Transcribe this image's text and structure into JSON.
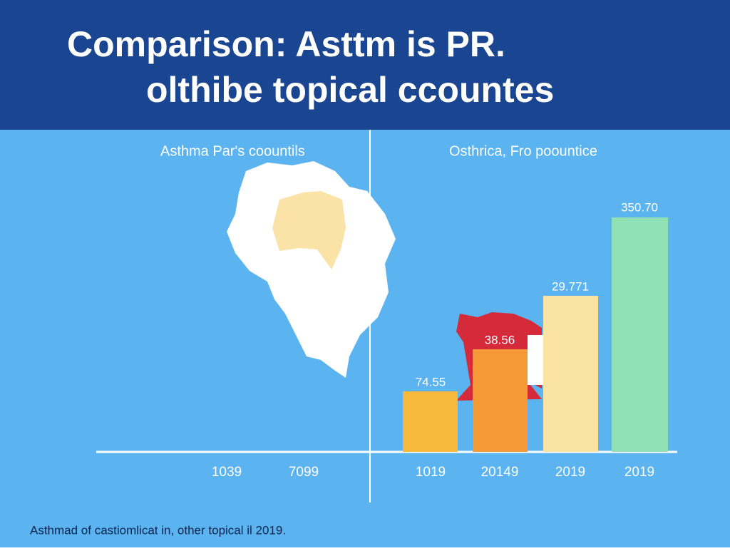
{
  "header": {
    "title_lines": [
      "Comparison: Asttm is PR.",
      "olthibe topical ccountes"
    ]
  },
  "left_panel": {
    "title": "Asthma Par's coountils",
    "x_labels": [
      "1039",
      "7099"
    ]
  },
  "right_panel": {
    "title": "Osthrica, Fro poountice",
    "bars": [
      {
        "label": "74.55",
        "category": "1019"
      },
      {
        "label": "38.56",
        "category": "20149"
      },
      {
        "label": "29.771",
        "category": "2019"
      },
      {
        "label": "350.70",
        "category": "2019"
      }
    ]
  },
  "footer": "Asthmad of castiomlicat in, other topical il 2019."
}
